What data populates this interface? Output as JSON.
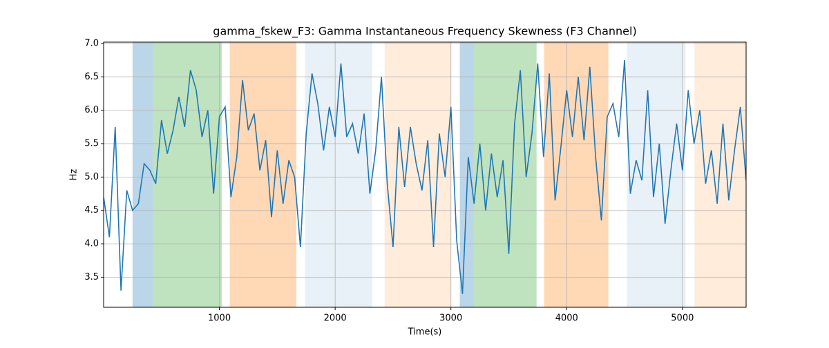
{
  "chart_data": {
    "type": "line",
    "title": "gamma_fskew_F3: Gamma Instantaneous Frequency Skewness (F3 Channel)",
    "x_label": "Time(s)",
    "y_label": "Hz",
    "xlim": [
      0,
      5550
    ],
    "ylim": [
      3.05,
      7.02
    ],
    "xticks": [
      1000,
      2000,
      3000,
      4000,
      5000
    ],
    "yticks": [
      3.5,
      {
        "value": 4.0,
        "label": "4.0"
      },
      4.5,
      {
        "value": 5.0,
        "label": "5.0"
      },
      5.5,
      {
        "value": 6.0,
        "label": "6.0"
      },
      6.5,
      {
        "value": 7.0,
        "label": "7.0"
      }
    ],
    "grid": true,
    "spans": [
      {
        "start": 250,
        "end": 425,
        "color": "#1f77b4",
        "alpha": 0.3
      },
      {
        "start": 425,
        "end": 1020,
        "color": "#2ca02c",
        "alpha": 0.3
      },
      {
        "start": 1090,
        "end": 1665,
        "color": "#ff7f0e",
        "alpha": 0.3
      },
      {
        "start": 1740,
        "end": 2320,
        "color": "#1f77b4",
        "alpha": 0.1
      },
      {
        "start": 2427,
        "end": 3005,
        "color": "#ff7f0e",
        "alpha": 0.15
      },
      {
        "start": 3077,
        "end": 3196,
        "color": "#1f77b4",
        "alpha": 0.3
      },
      {
        "start": 3196,
        "end": 3740,
        "color": "#2ca02c",
        "alpha": 0.3
      },
      {
        "start": 3805,
        "end": 4360,
        "color": "#ff7f0e",
        "alpha": 0.3
      },
      {
        "start": 4520,
        "end": 5027,
        "color": "#1f77b4",
        "alpha": 0.1
      },
      {
        "start": 5104,
        "end": 5550,
        "color": "#ff7f0e",
        "alpha": 0.15
      }
    ],
    "x": [
      0,
      50,
      100,
      150,
      200,
      250,
      300,
      350,
      400,
      450,
      500,
      550,
      600,
      650,
      700,
      750,
      800,
      850,
      900,
      950,
      1000,
      1050,
      1100,
      1150,
      1200,
      1250,
      1300,
      1350,
      1400,
      1450,
      1500,
      1550,
      1600,
      1650,
      1700,
      1750,
      1800,
      1850,
      1900,
      1950,
      2000,
      2050,
      2100,
      2150,
      2200,
      2250,
      2300,
      2350,
      2400,
      2450,
      2500,
      2550,
      2600,
      2650,
      2700,
      2750,
      2800,
      2850,
      2900,
      2950,
      3000,
      3050,
      3100,
      3150,
      3200,
      3250,
      3300,
      3350,
      3400,
      3450,
      3500,
      3550,
      3600,
      3650,
      3700,
      3750,
      3800,
      3850,
      3900,
      3950,
      4000,
      4050,
      4100,
      4150,
      4200,
      4250,
      4300,
      4350,
      4400,
      4450,
      4500,
      4550,
      4600,
      4650,
      4700,
      4750,
      4800,
      4850,
      4900,
      4950,
      5000,
      5050,
      5100,
      5150,
      5200,
      5250,
      5300,
      5350,
      5400,
      5450,
      5500,
      5550
    ],
    "series": [
      {
        "color": "#1f77b4",
        "values": [
          4.7,
          4.1,
          5.75,
          3.3,
          4.8,
          4.5,
          4.6,
          5.2,
          5.1,
          4.9,
          5.85,
          5.35,
          5.7,
          6.2,
          5.75,
          6.6,
          6.3,
          5.6,
          6.0,
          4.75,
          5.9,
          6.05,
          4.7,
          5.3,
          6.45,
          5.7,
          5.95,
          5.1,
          5.55,
          4.4,
          5.4,
          4.6,
          5.25,
          5.0,
          3.95,
          5.65,
          6.55,
          6.1,
          5.4,
          6.05,
          5.6,
          6.7,
          5.6,
          5.8,
          5.35,
          5.95,
          4.75,
          5.4,
          6.5,
          4.9,
          3.95,
          5.75,
          4.85,
          5.75,
          5.2,
          4.8,
          5.55,
          3.95,
          5.65,
          5.0,
          6.05,
          4.05,
          3.25,
          5.3,
          4.6,
          5.5,
          4.5,
          5.35,
          4.7,
          5.25,
          3.85,
          5.8,
          6.6,
          5.0,
          5.65,
          6.7,
          5.3,
          6.55,
          4.65,
          5.45,
          6.3,
          5.6,
          6.5,
          5.55,
          6.65,
          5.3,
          4.35,
          5.9,
          6.1,
          5.6,
          6.75,
          4.75,
          5.25,
          4.95,
          6.3,
          4.7,
          5.5,
          4.3,
          5.1,
          5.8,
          5.1,
          6.3,
          5.5,
          6.0,
          4.9,
          5.4,
          4.6,
          5.8,
          4.65,
          5.4,
          6.05,
          4.95
        ]
      }
    ]
  }
}
